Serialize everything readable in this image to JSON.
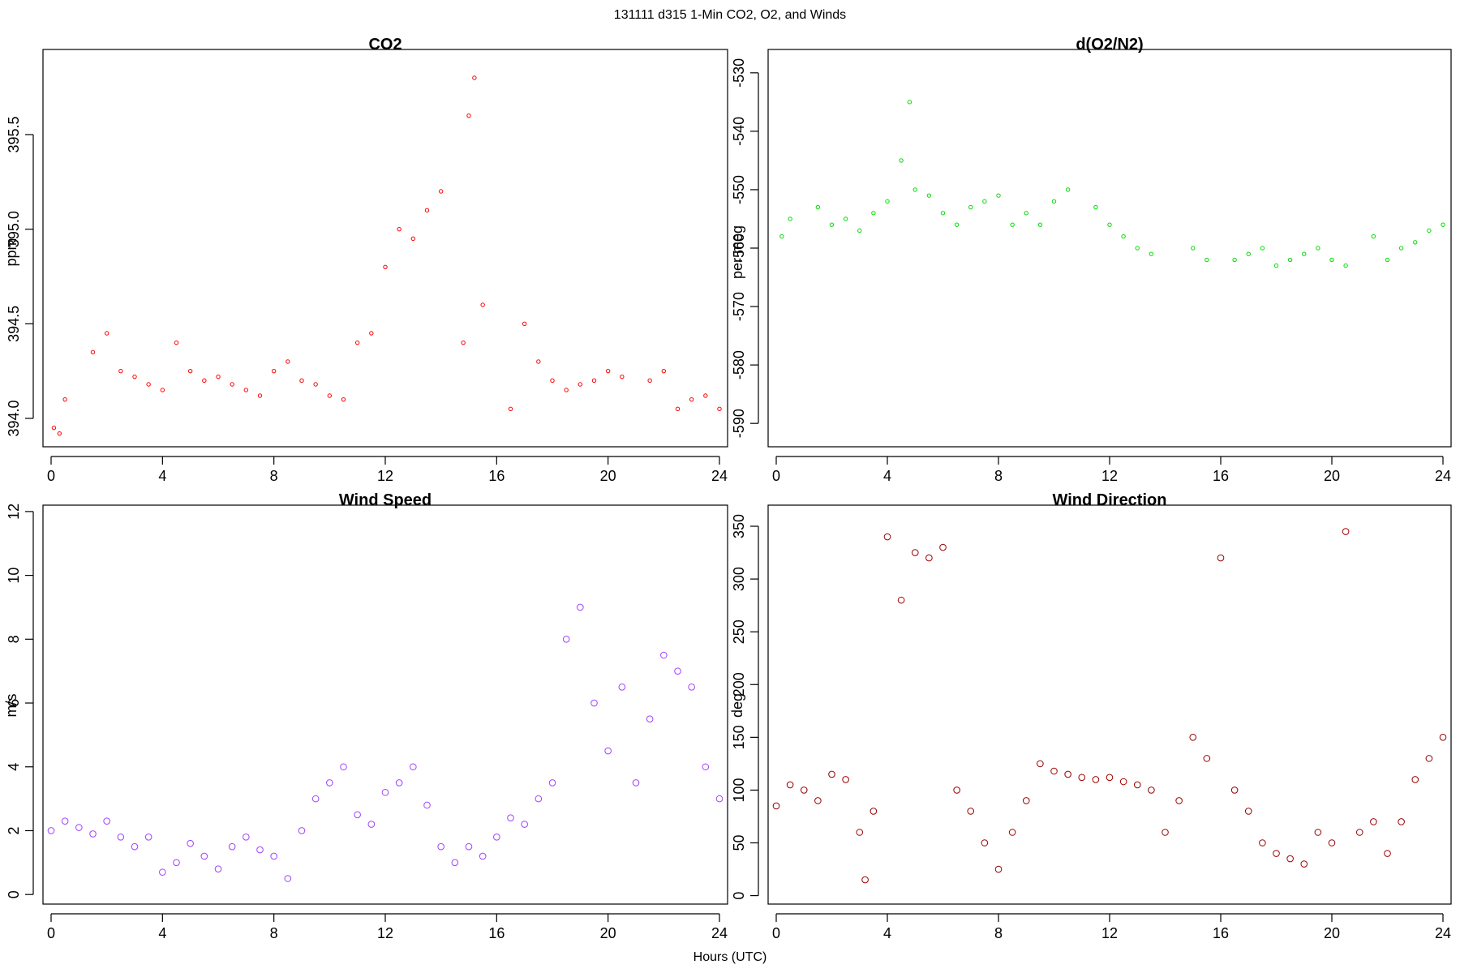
{
  "figure": {
    "title": "131111   d315   1-Min CO2, O2, and Winds",
    "xlabel": "Hours (UTC)"
  },
  "chart_data": [
    {
      "id": "co2",
      "type": "scatter",
      "title": "CO2",
      "ylabel": "ppm",
      "xlabel": "",
      "xlim": [
        0,
        24
      ],
      "ylim": [
        393.85,
        395.95
      ],
      "xticks": [
        0,
        4,
        8,
        12,
        16,
        20,
        24
      ],
      "yticks": [
        394.0,
        394.5,
        395.0,
        395.5
      ],
      "ytick_labels": [
        "394.0",
        "394.5",
        "395.0",
        "395.5"
      ],
      "color": "#ff0000",
      "marker_radius": 2.2,
      "series": [
        {
          "x": [
            0.1,
            0.3,
            0.5,
            1.5,
            2.0,
            2.5,
            3.0,
            3.5,
            4.0,
            4.5,
            5.0,
            5.5,
            6.0,
            6.5,
            7.0,
            7.5,
            8.0,
            8.5,
            9.0,
            9.5,
            10.0,
            10.5,
            11.0,
            11.5,
            12.0,
            12.5,
            13.0,
            13.5,
            14.0,
            14.8,
            15.0,
            15.2,
            15.5,
            16.5,
            17.0,
            17.5,
            18.0,
            18.5,
            19.0,
            19.5,
            20.0,
            20.5,
            21.5,
            22.0,
            22.5,
            23.0,
            23.5,
            24.0
          ],
          "y": [
            393.95,
            393.92,
            394.1,
            394.35,
            394.45,
            394.25,
            394.22,
            394.18,
            394.15,
            394.4,
            394.25,
            394.2,
            394.22,
            394.18,
            394.15,
            394.12,
            394.25,
            394.3,
            394.2,
            394.18,
            394.12,
            394.1,
            394.4,
            394.45,
            394.8,
            395.0,
            394.95,
            395.1,
            395.2,
            394.4,
            395.6,
            395.8,
            394.6,
            394.05,
            394.5,
            394.3,
            394.2,
            394.15,
            394.18,
            394.2,
            394.25,
            394.22,
            394.2,
            394.25,
            394.05,
            394.1,
            394.12,
            394.05
          ]
        }
      ]
    },
    {
      "id": "o2",
      "type": "scatter",
      "title": "d(O2/N2)",
      "ylabel": "per meg",
      "xlabel": "",
      "xlim": [
        0,
        24
      ],
      "ylim": [
        -594,
        -526
      ],
      "xticks": [
        0,
        4,
        8,
        12,
        16,
        20,
        24
      ],
      "yticks": [
        -590,
        -580,
        -570,
        -560,
        -550,
        -540,
        -530
      ],
      "ytick_labels": [
        "-590",
        "-580",
        "-570",
        "-560",
        "-550",
        "-540",
        "-530"
      ],
      "color": "#00dd00",
      "marker_radius": 2.2,
      "series": [
        {
          "x": [
            0.2,
            0.5,
            1.5,
            2.0,
            2.5,
            3.0,
            3.5,
            4.0,
            4.5,
            4.8,
            5.0,
            5.5,
            6.0,
            6.5,
            7.0,
            7.5,
            8.0,
            8.5,
            9.0,
            9.5,
            10.0,
            10.5,
            11.5,
            12.0,
            12.5,
            13.0,
            13.5,
            15.0,
            15.5,
            16.5,
            17.0,
            17.5,
            18.0,
            18.5,
            19.0,
            19.5,
            20.0,
            20.5,
            21.5,
            22.0,
            22.5,
            23.0,
            23.5,
            24.0
          ],
          "y": [
            -558,
            -555,
            -553,
            -556,
            -555,
            -557,
            -554,
            -552,
            -545,
            -535,
            -550,
            -551,
            -554,
            -556,
            -553,
            -552,
            -551,
            -556,
            -554,
            -556,
            -552,
            -550,
            -553,
            -556,
            -558,
            -560,
            -561,
            -560,
            -562,
            -562,
            -561,
            -560,
            -563,
            -562,
            -561,
            -560,
            -562,
            -563,
            -558,
            -562,
            -560,
            -559,
            -557,
            -556
          ]
        }
      ]
    },
    {
      "id": "ws",
      "type": "scatter",
      "title": "Wind Speed",
      "ylabel": "m/s",
      "xlabel": "",
      "xlim": [
        0,
        24
      ],
      "ylim": [
        -0.3,
        12.2
      ],
      "xticks": [
        0,
        4,
        8,
        12,
        16,
        20,
        24
      ],
      "yticks": [
        0,
        2,
        4,
        6,
        8,
        10,
        12
      ],
      "ytick_labels": [
        "0",
        "2",
        "4",
        "6",
        "8",
        "10",
        "12"
      ],
      "color": "#a040ff",
      "marker_radius": 3.8,
      "series": [
        {
          "x": [
            0.0,
            0.5,
            1.0,
            1.5,
            2.0,
            2.5,
            3.0,
            3.5,
            4.0,
            4.5,
            5.0,
            5.5,
            6.0,
            6.5,
            7.0,
            7.5,
            8.0,
            8.5,
            9.0,
            9.5,
            10.0,
            10.5,
            11.0,
            11.5,
            12.0,
            12.5,
            13.0,
            13.5,
            14.0,
            14.5,
            15.0,
            15.5,
            16.0,
            16.5,
            17.0,
            17.5,
            18.0,
            18.5,
            19.0,
            19.5,
            20.0,
            20.5,
            21.0,
            21.5,
            22.0,
            22.5,
            23.0,
            23.5,
            24.0
          ],
          "y": [
            2.0,
            2.3,
            2.1,
            1.9,
            2.3,
            1.8,
            1.5,
            1.8,
            0.7,
            1.0,
            1.6,
            1.2,
            0.8,
            1.5,
            1.8,
            1.4,
            1.2,
            0.5,
            2.0,
            3.0,
            3.5,
            4.0,
            2.5,
            2.2,
            3.2,
            3.5,
            4.0,
            2.8,
            1.5,
            1.0,
            1.5,
            1.2,
            1.8,
            2.4,
            2.2,
            3.0,
            3.5,
            8.0,
            9.0,
            6.0,
            4.5,
            6.5,
            3.5,
            5.5,
            7.5,
            7.0,
            6.5,
            4.0,
            3.0
          ]
        }
      ]
    },
    {
      "id": "wd",
      "type": "scatter",
      "title": "Wind Direction",
      "ylabel": "deg",
      "xlabel": "",
      "xlim": [
        0,
        24
      ],
      "ylim": [
        -8,
        370
      ],
      "xticks": [
        0,
        4,
        8,
        12,
        16,
        20,
        24
      ],
      "yticks": [
        0,
        50,
        100,
        150,
        200,
        250,
        300,
        350
      ],
      "ytick_labels": [
        "0",
        "50",
        "100",
        "150",
        "200",
        "250",
        "300",
        "350"
      ],
      "color": "#990000",
      "marker_radius": 3.8,
      "series": [
        {
          "x": [
            0.0,
            0.5,
            1.0,
            1.5,
            2.0,
            2.5,
            3.0,
            3.2,
            3.5,
            4.0,
            4.5,
            5.0,
            5.5,
            6.0,
            6.5,
            7.0,
            7.5,
            8.0,
            8.5,
            9.0,
            9.5,
            10.0,
            10.5,
            11.0,
            11.5,
            12.0,
            12.5,
            13.0,
            13.5,
            14.0,
            14.5,
            15.0,
            15.5,
            16.0,
            16.5,
            17.0,
            17.5,
            18.0,
            18.5,
            19.0,
            19.5,
            20.0,
            20.5,
            21.0,
            21.5,
            22.0,
            22.5,
            23.0,
            23.5,
            24.0
          ],
          "y": [
            85,
            105,
            100,
            90,
            115,
            110,
            60,
            15,
            80,
            340,
            280,
            325,
            320,
            330,
            100,
            80,
            50,
            25,
            60,
            90,
            125,
            118,
            115,
            112,
            110,
            112,
            108,
            105,
            100,
            60,
            90,
            150,
            130,
            320,
            100,
            80,
            50,
            40,
            35,
            30,
            60,
            50,
            345,
            60,
            70,
            40,
            70,
            110,
            130,
            150
          ]
        }
      ]
    }
  ]
}
